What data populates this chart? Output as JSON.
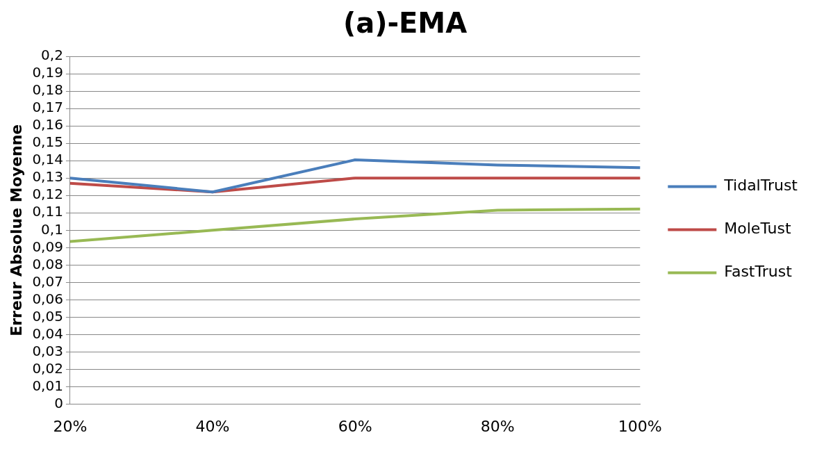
{
  "chart_data": {
    "type": "line",
    "title": "(a)-EMA",
    "ylabel": "Erreur Absolue Moyenne",
    "categories": [
      "20%",
      "40%",
      "60%",
      "80%",
      "100%"
    ],
    "series": [
      {
        "name": "TidalTrust",
        "color": "#4a7ebb",
        "values": [
          0.13,
          0.122,
          0.1405,
          0.1375,
          0.136
        ]
      },
      {
        "name": "MoleTust",
        "color": "#be4b48",
        "values": [
          0.127,
          0.122,
          0.13,
          0.13,
          0.13
        ]
      },
      {
        "name": "FastTrust",
        "color": "#98b954",
        "values": [
          0.0935,
          0.1,
          0.1065,
          0.1115,
          0.1122
        ]
      }
    ],
    "ylim": [
      0,
      0.2
    ],
    "yticks": [
      0,
      {
        "value": 0.01,
        "label": "0,01"
      },
      {
        "value": 0.02,
        "label": "0,02"
      },
      {
        "value": 0.03,
        "label": "0,03"
      },
      {
        "value": 0.04,
        "label": "0,04"
      },
      {
        "value": 0.05,
        "label": "0,05"
      },
      {
        "value": 0.06,
        "label": "0,06"
      },
      {
        "value": 0.07,
        "label": "0,07"
      },
      {
        "value": 0.08,
        "label": "0,08"
      },
      {
        "value": 0.09,
        "label": "0,09"
      },
      {
        "value": 0.1,
        "label": "0,1"
      },
      {
        "value": 0.11,
        "label": "0,11"
      },
      {
        "value": 0.12,
        "label": "0,12"
      },
      {
        "value": 0.13,
        "label": "0,13"
      },
      {
        "value": 0.14,
        "label": "0,14"
      },
      {
        "value": 0.15,
        "label": "0,15"
      },
      {
        "value": 0.16,
        "label": "0,16"
      },
      {
        "value": 0.17,
        "label": "0,17"
      },
      {
        "value": 0.18,
        "label": "0,18"
      },
      {
        "value": 0.19,
        "label": "0,19"
      },
      {
        "value": 0.2,
        "label": "0,2"
      }
    ],
    "grid": "y",
    "legend": "right",
    "marker": "none",
    "line_style": "solid"
  }
}
